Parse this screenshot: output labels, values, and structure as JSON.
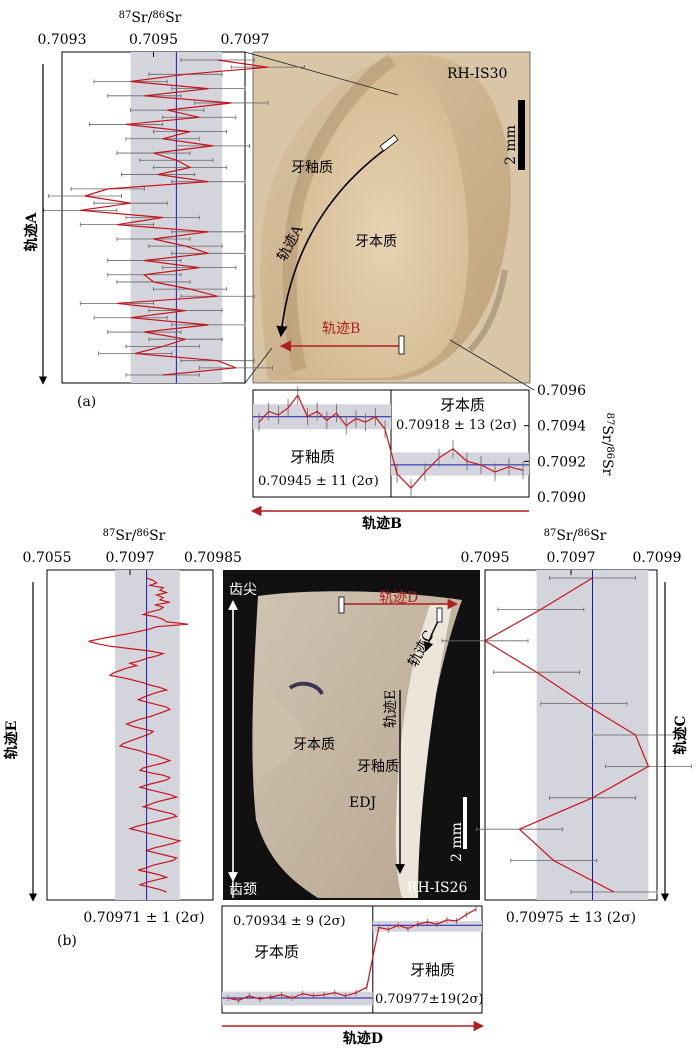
{
  "figure_labels": {
    "a": "(a)",
    "b": "(b)"
  },
  "colors": {
    "series": "#c8141c",
    "mean": "#1a1aa8",
    "band": "#d4d4dc",
    "track_red": "#b01e1e"
  },
  "photos": {
    "top": {
      "sample_id": "RH-IS30",
      "scale_bar": "2 mm",
      "labels": {
        "enamel": "牙釉质",
        "dentine": "牙本质",
        "track_a": "轨迹A",
        "track_b": "轨迹B"
      }
    },
    "bottom": {
      "sample_id": "RH-IS26",
      "scale_bar": "2 mm",
      "labels": {
        "tip": "齿尖",
        "neck": "齿颈",
        "dentine": "牙本质",
        "enamel": "牙釉质",
        "edj": "EDJ",
        "track_c": "轨迹C",
        "track_d": "轨迹D",
        "track_e": "轨迹E"
      }
    }
  },
  "chart_data": [
    {
      "id": "track-a",
      "type": "line",
      "orientation": "vertical",
      "title": "⁸⁷Sr/⁸⁶Sr",
      "track_label": "轨迹A",
      "xlim": [
        0.7093,
        0.7097
      ],
      "ticks": [
        "0.7093",
        "0.7095",
        "0.7097"
      ],
      "tick_values": [
        0.7093,
        0.7095,
        0.7097
      ],
      "mean": 0.70955,
      "band": [
        0.70945,
        0.70965
      ],
      "x": [
        0.70964,
        0.70975,
        0.70957,
        0.70945,
        0.70962,
        0.70948,
        0.70967,
        0.70953,
        0.7096,
        0.70944,
        0.70958,
        0.70952,
        0.70963,
        0.7095,
        0.70955,
        0.70958,
        0.70951,
        0.70962,
        0.7094,
        0.70935,
        0.70945,
        0.70934,
        0.70952,
        0.70942,
        0.70962,
        0.7095,
        0.70957,
        0.70962,
        0.70948,
        0.7096,
        0.70948,
        0.7095,
        0.70958,
        0.70964,
        0.70942,
        0.70957,
        0.70945,
        0.70962,
        0.70948,
        0.70957,
        0.70952,
        0.70946,
        0.70964,
        0.70968,
        0.70952
      ],
      "err": 8e-05
    },
    {
      "id": "track-b",
      "type": "line",
      "orientation": "horizontal",
      "track_label": "轨迹B",
      "ylabel": "⁸⁷Sr/⁸⁶Sr",
      "ylim": [
        0.709,
        0.7096
      ],
      "ticks": [
        "0.7096",
        "0.7094",
        "0.7092",
        "0.7090"
      ],
      "tick_values": [
        0.7096,
        0.7094,
        0.7092,
        0.709
      ],
      "segments": [
        {
          "label": "牙釉质",
          "stat": "0.70945 ± 11 (2σ)",
          "mean": 0.70945,
          "band": [
            0.70938,
            0.70952
          ],
          "y": [
            0.70942,
            0.70948,
            0.70946,
            0.7095,
            0.70957,
            0.70945,
            0.70948,
            0.70943,
            0.70947,
            0.7094,
            0.70944,
            0.70942,
            0.70945,
            0.70938
          ]
        },
        {
          "label": "牙本质",
          "stat": "0.70918 ± 13 (2σ)",
          "mean": 0.70918,
          "band": [
            0.70912,
            0.70925
          ],
          "y": [
            0.70913,
            0.70905,
            0.70914,
            0.70922,
            0.70927,
            0.7092,
            0.70918,
            0.70914,
            0.70917,
            0.70915
          ]
        }
      ],
      "err": 5e-05
    },
    {
      "id": "track-e",
      "type": "line",
      "orientation": "vertical",
      "title": "⁸⁷Sr/⁸⁶Sr",
      "track_label": "轨迹E",
      "stat": "0.70971 ± 1 (2σ)",
      "xlim": [
        0.7055,
        0.70985
      ],
      "ticks": [
        "0.7055",
        "0.7097",
        "0.70985"
      ],
      "tick_values": [
        0.7055,
        0.7097,
        0.70985
      ],
      "axis_mode": "categorical_ticks",
      "mean": 0.70971,
      "band_frac": [
        0.41,
        0.8
      ],
      "mean_frac": 0.6,
      "x_frac": [
        0.6,
        0.64,
        0.66,
        0.62,
        0.7,
        0.68,
        0.72,
        0.66,
        0.7,
        0.68,
        0.74,
        0.65,
        0.7,
        0.68,
        0.62,
        0.58,
        0.66,
        0.7,
        0.72,
        0.85,
        0.66,
        0.62,
        0.55,
        0.48,
        0.4,
        0.32,
        0.25,
        0.3,
        0.38,
        0.5,
        0.62,
        0.7,
        0.66,
        0.6,
        0.56,
        0.5,
        0.54,
        0.48,
        0.44,
        0.4,
        0.38,
        0.46,
        0.52,
        0.58,
        0.62,
        0.68,
        0.72,
        0.66,
        0.62,
        0.58,
        0.55,
        0.6,
        0.66,
        0.72,
        0.74,
        0.7,
        0.66,
        0.62,
        0.56,
        0.52,
        0.48,
        0.52,
        0.58,
        0.64,
        0.62,
        0.58,
        0.54,
        0.5,
        0.46,
        0.44,
        0.5,
        0.56,
        0.6,
        0.66,
        0.7,
        0.74,
        0.7,
        0.64,
        0.58,
        0.56,
        0.62,
        0.7,
        0.74,
        0.72,
        0.66,
        0.6,
        0.56,
        0.62,
        0.68,
        0.74,
        0.78,
        0.72,
        0.66,
        0.62,
        0.58,
        0.64,
        0.7,
        0.76,
        0.78,
        0.72,
        0.66,
        0.6,
        0.54,
        0.5,
        0.56,
        0.62,
        0.68,
        0.74,
        0.8,
        0.76,
        0.7,
        0.64,
        0.6,
        0.66,
        0.72,
        0.78,
        0.76,
        0.7,
        0.64,
        0.6,
        0.55,
        0.62,
        0.68,
        0.72,
        0.66,
        0.6,
        0.56,
        0.62,
        0.68,
        0.72
      ]
    },
    {
      "id": "track-c",
      "type": "line",
      "orientation": "vertical",
      "title": "⁸⁷Sr/⁸⁶Sr",
      "track_label": "轨迹C",
      "stat": "0.70975 ± 13 (2σ)",
      "xlim": [
        0.7095,
        0.7099
      ],
      "ticks": [
        "0.7095",
        "0.7097",
        "0.7099"
      ],
      "tick_values": [
        0.7095,
        0.7097,
        0.7099
      ],
      "mean": 0.70975,
      "band": [
        0.70962,
        0.70988
      ],
      "x": [
        0.70975,
        0.70963,
        0.7095,
        0.70962,
        0.70973,
        0.70985,
        0.70988,
        0.70975,
        0.70958,
        0.70966,
        0.7098
      ],
      "err": 0.0001
    },
    {
      "id": "track-d",
      "type": "line",
      "orientation": "horizontal",
      "track_label": "轨迹D",
      "segments": [
        {
          "label": "牙本质",
          "stat": "0.70934 ± 9 (2σ)",
          "band_frac": [
            0.07,
            0.2
          ],
          "mean_frac": 0.14,
          "y_frac": [
            0.14,
            0.12,
            0.16,
            0.13,
            0.15,
            0.17,
            0.14,
            0.18,
            0.16,
            0.17,
            0.19,
            0.16,
            0.19,
            0.24
          ]
        },
        {
          "label": "牙釉质",
          "stat": "0.70977±19(2σ)",
          "band_frac": [
            0.76,
            0.86
          ],
          "mean_frac": 0.82,
          "y_frac": [
            0.8,
            0.78,
            0.82,
            0.79,
            0.83,
            0.85,
            0.83,
            0.87,
            0.86,
            0.92,
            0.97
          ]
        }
      ]
    }
  ]
}
